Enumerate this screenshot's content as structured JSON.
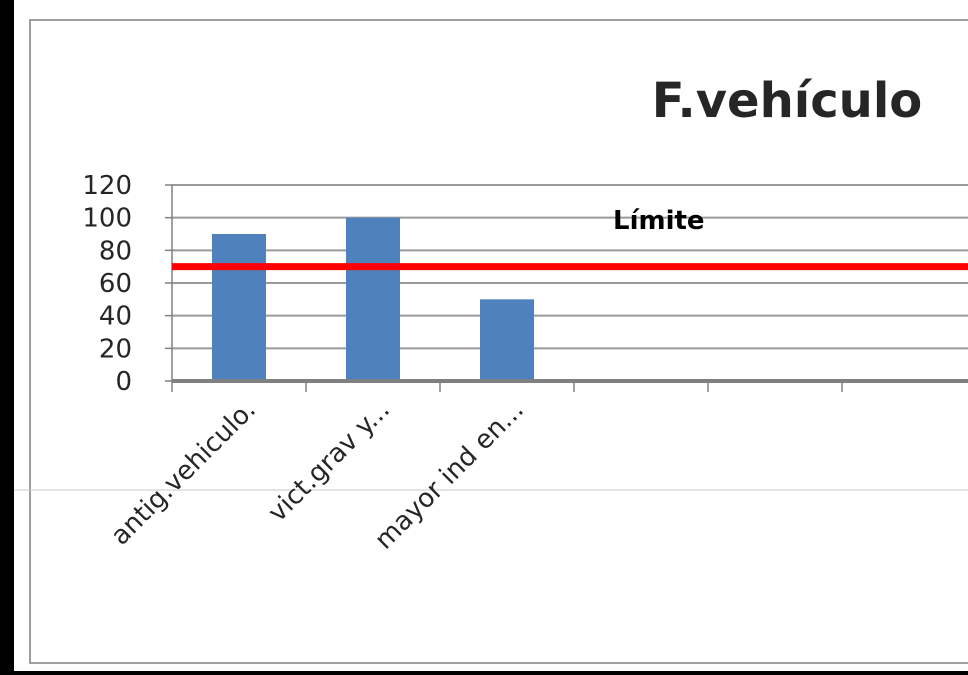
{
  "chart_data": {
    "type": "bar",
    "title": "F.vehículo",
    "categories": [
      "antig.vehiculo.",
      "vict.grav y...",
      "mayor ind en...",
      "",
      "",
      ""
    ],
    "series": [
      {
        "values": [
          90,
          100,
          50,
          null,
          null,
          null
        ]
      }
    ],
    "ylim": [
      0,
      120
    ],
    "yticks": [
      0,
      20,
      40,
      60,
      80,
      100,
      120
    ],
    "grid": true,
    "reference_line": {
      "label": "Límite",
      "value": 70
    },
    "colors": {
      "bar": "#4f81bd",
      "limit_line": "#ff0000",
      "gridline": "#9a9a9a",
      "background": "#ffffff",
      "frame": "#000000"
    }
  }
}
